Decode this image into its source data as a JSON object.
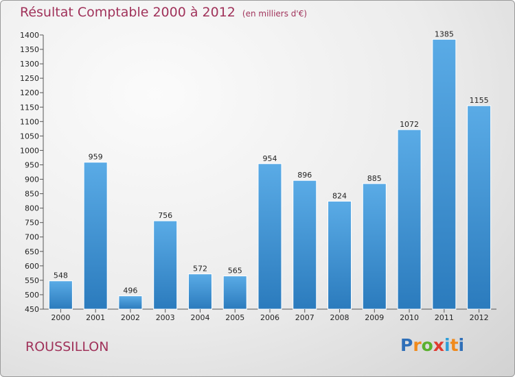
{
  "header": {
    "title": "Résultat Comptable 2000 à 2012",
    "unit": "(en milliers d'€)"
  },
  "footer": {
    "city": "ROUSSILLON",
    "logo_letters": [
      "P",
      "r",
      "o",
      "x",
      "i",
      "t",
      "i"
    ],
    "logo_colors": [
      "#2f6fb8",
      "#f08a1c",
      "#5ab02f",
      "#e03a2f",
      "#2f9fd8",
      "#f08a1c",
      "#2f6fb8"
    ]
  },
  "colors": {
    "bar_light": "#5aabe6",
    "bar_dark": "#2b7bbd",
    "accent": "#a0325a"
  },
  "chart_data": {
    "type": "bar",
    "title": "Résultat Comptable 2000 à 2012",
    "subtitle": "(en milliers d'€)",
    "xlabel": "",
    "ylabel": "",
    "categories": [
      "2000",
      "2001",
      "2002",
      "2003",
      "2004",
      "2005",
      "2006",
      "2007",
      "2008",
      "2009",
      "2010",
      "2011",
      "2012"
    ],
    "values": [
      548,
      959,
      496,
      756,
      572,
      565,
      954,
      896,
      824,
      885,
      1072,
      1385,
      1155
    ],
    "ylim": [
      450,
      1400
    ],
    "ytick_step": 50,
    "grid": false,
    "legend": "none"
  }
}
